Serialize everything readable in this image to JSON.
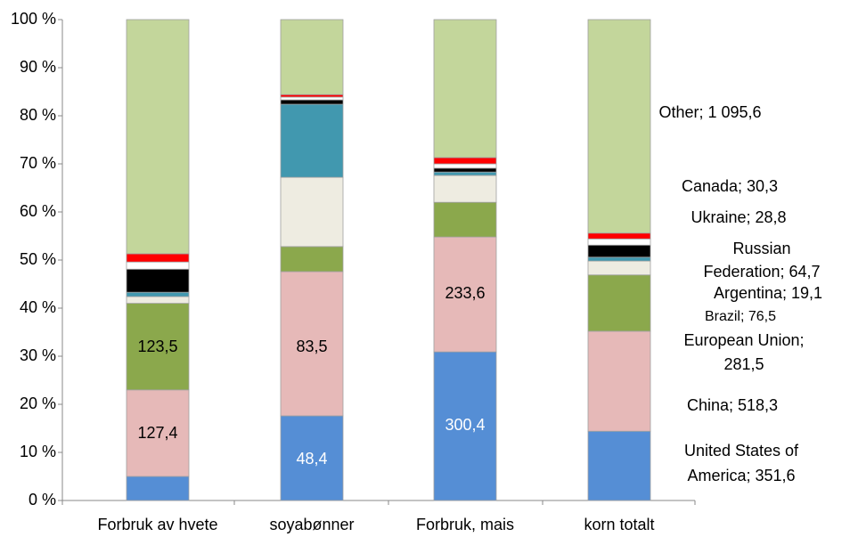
{
  "chart_data": {
    "type": "stacked_bar_100",
    "categories": [
      "Forbruk av hvete",
      "soyabønner",
      "Forbruk, mais",
      "korn totalt"
    ],
    "series": [
      {
        "color": "#558ed5",
        "values": [
          5,
          17.6,
          30.9,
          14.4
        ]
      },
      {
        "color": "#e6b9b8",
        "values": [
          18,
          30,
          23.9,
          20.8
        ]
      },
      {
        "color": "#8ba84c",
        "values": [
          18,
          5.2,
          7.2,
          11.7
        ]
      },
      {
        "color": "#eeece1",
        "values": [
          1.4,
          14.4,
          5.6,
          2.9
        ]
      },
      {
        "color": "#4198af",
        "values": [
          0.9,
          15.2,
          0.7,
          0.8
        ]
      },
      {
        "color": "#000000",
        "values": [
          4.8,
          0.9,
          0.8,
          2.5
        ]
      },
      {
        "color": "#ffffff",
        "values": [
          1.5,
          0.6,
          0.9,
          1.3
        ]
      },
      {
        "color": "#ff0000",
        "values": [
          1.7,
          0.5,
          1.3,
          1.2
        ]
      },
      {
        "color": "#c3d69b",
        "values": [
          48.7,
          15.6,
          28.7,
          44.4
        ]
      }
    ],
    "ylim": [
      0,
      100
    ],
    "yticks": [
      {
        "value": 0,
        "label": "0 %"
      },
      {
        "value": 10,
        "label": "10 %"
      },
      {
        "value": 20,
        "label": "20 %"
      },
      {
        "value": 30,
        "label": "30 %"
      },
      {
        "value": 40,
        "label": "40 %"
      },
      {
        "value": 50,
        "label": "50 %"
      },
      {
        "value": 60,
        "label": "60 %"
      },
      {
        "value": 70,
        "label": "70 %"
      },
      {
        "value": 80,
        "label": "80 %"
      },
      {
        "value": 90,
        "label": "90 %"
      },
      {
        "value": 100,
        "label": "100 %"
      }
    ],
    "bar_labels": [
      "127,4",
      "123,5",
      "48,4",
      "83,5",
      "300,4",
      "233,6"
    ],
    "annotations": [
      [
        "Other;  1 095,6"
      ],
      [
        "Canada;  30,3"
      ],
      [
        "Ukraine;  28,8"
      ],
      [
        "Russian",
        "Federation;  64,7"
      ],
      [
        "Argentina;  19,1"
      ],
      [
        "Brazil;  76,5"
      ],
      [
        "European Union;",
        "281,5"
      ],
      [
        "China;  518,3"
      ],
      [
        "United States of",
        "America;  351,6"
      ]
    ]
  }
}
